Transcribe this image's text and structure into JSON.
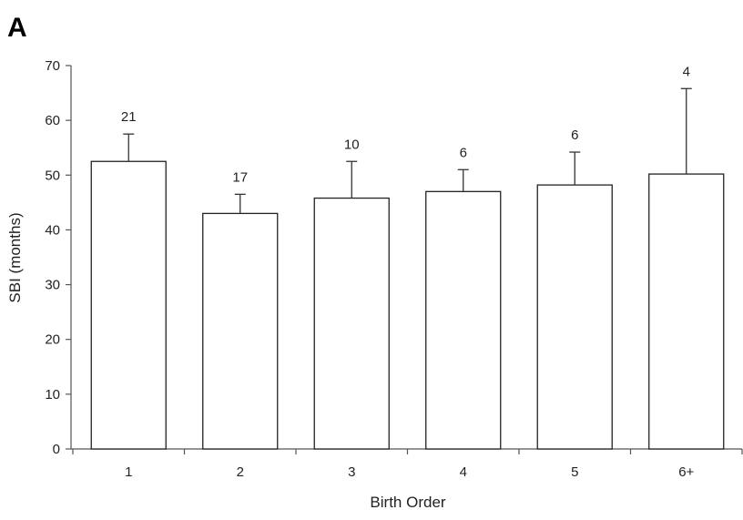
{
  "chart_data": {
    "type": "bar",
    "panel_label": "A",
    "categories": [
      "1",
      "2",
      "3",
      "4",
      "5",
      "6+"
    ],
    "values": [
      52.5,
      43,
      45.8,
      47,
      48.2,
      50.2
    ],
    "error_upper": [
      57.5,
      46.5,
      52.5,
      51,
      54.2,
      65.8
    ],
    "data_labels": [
      "21",
      "17",
      "10",
      "6",
      "6",
      "4"
    ],
    "xlabel": "Birth Order",
    "ylabel": "SBI (months)",
    "ylim": [
      0,
      70
    ],
    "yticks": [
      "0",
      "10",
      "20",
      "30",
      "40",
      "50",
      "60",
      "70"
    ],
    "grid": false,
    "colors": {
      "bar_fill": "#ffffff",
      "bar_stroke": "#222222",
      "text": "#222222"
    }
  }
}
